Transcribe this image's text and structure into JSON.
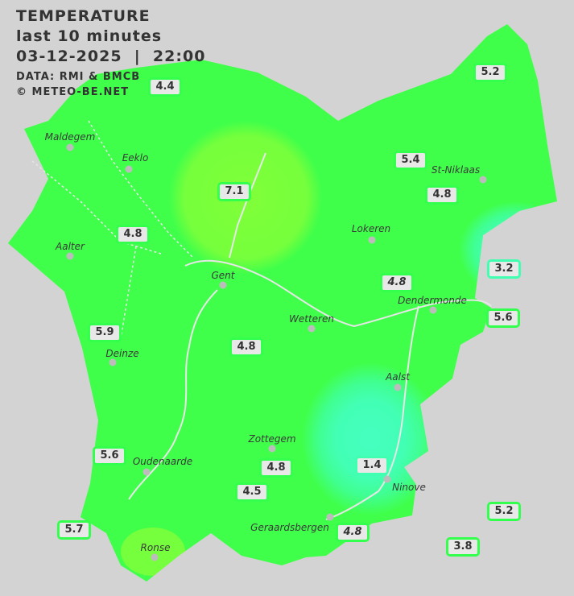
{
  "header": {
    "title": "TEMPERATURE",
    "subtitle": "last 10 minutes",
    "datetime": "03-12-2025  |  22:00",
    "source": "DATA: RMI & BMCB",
    "copyright": "© METEO-BE.NET"
  },
  "colors": {
    "background": "#d3d3d3",
    "land": "#40ff4a",
    "warm": "#7dff3a",
    "cold": "#40ffb0",
    "badge_border": "#33ff4d",
    "badge_border_cold": "#40ffb0"
  },
  "cities": [
    {
      "name": "Maldegem"
    },
    {
      "name": "Eeklo"
    },
    {
      "name": "St-Niklaas"
    },
    {
      "name": "Lokeren"
    },
    {
      "name": "Aalter"
    },
    {
      "name": "Gent"
    },
    {
      "name": "Dendermonde"
    },
    {
      "name": "Deinze"
    },
    {
      "name": "Wetteren"
    },
    {
      "name": "Aalst"
    },
    {
      "name": "Zottegem"
    },
    {
      "name": "Oudenaarde"
    },
    {
      "name": "Ninove"
    },
    {
      "name": "Geraardsbergen"
    },
    {
      "name": "Ronse"
    }
  ],
  "stations": [
    {
      "value": "4.4"
    },
    {
      "value": "5.2"
    },
    {
      "value": "5.4"
    },
    {
      "value": "4.8"
    },
    {
      "value": "7.1"
    },
    {
      "value": "4.8"
    },
    {
      "value": "3.2"
    },
    {
      "value": "4.8"
    },
    {
      "value": "5.6"
    },
    {
      "value": "5.9"
    },
    {
      "value": "4.8"
    },
    {
      "value": "5.6"
    },
    {
      "value": "4.8"
    },
    {
      "value": "1.4"
    },
    {
      "value": "4.5"
    },
    {
      "value": "5.2"
    },
    {
      "value": "5.7"
    },
    {
      "value": "4.8"
    },
    {
      "value": "3.8"
    }
  ]
}
